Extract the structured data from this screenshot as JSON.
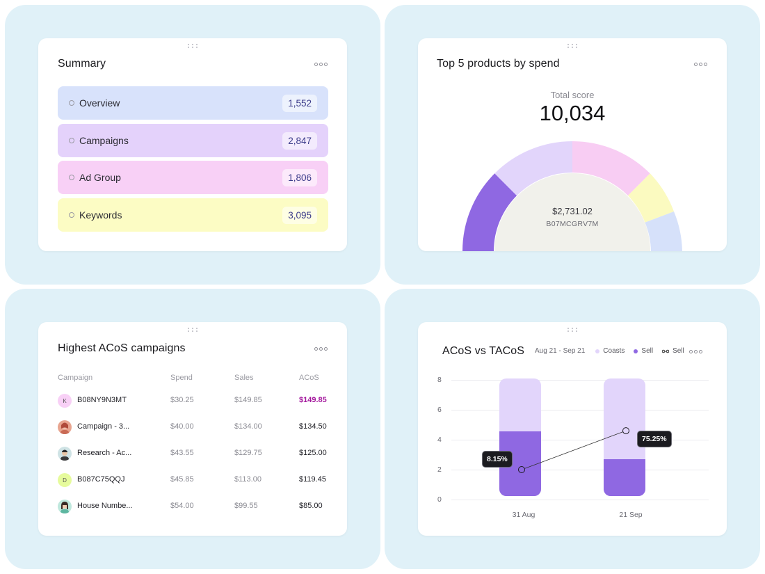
{
  "colors": {
    "tile_bg": "#e0f1f8",
    "overview": "#d8e2fb",
    "campaigns": "#e4d2fb",
    "ad_group": "#f8d0f6",
    "keywords": "#fcfcc4",
    "purple": "#8f68e2",
    "lavender": "#e2d5fb",
    "pink": "#f8cdf3",
    "yellow": "#fbfac0",
    "blue": "#d6e1fa",
    "highlight": "#a3169c"
  },
  "summary": {
    "title": "Summary",
    "items": [
      {
        "label": "Overview",
        "count": "1,552"
      },
      {
        "label": "Campaigns",
        "count": "2,847"
      },
      {
        "label": "Ad Group",
        "count": "1,806"
      },
      {
        "label": "Keywords",
        "count": "3,095"
      }
    ]
  },
  "top_products": {
    "title": "Top 5 products by spend",
    "score_label": "Total score",
    "score_value": "10,034",
    "center_value": "$2,731.02",
    "center_sku": "B07MCGRV7M"
  },
  "acos_campaigns": {
    "title": "Highest ACoS campaigns",
    "headers": {
      "campaign": "Campaign",
      "spend": "Spend",
      "sales": "Sales",
      "acos": "ACoS"
    },
    "rows": [
      {
        "avatar": "K",
        "name": "B08NY9N3MT",
        "spend": "$30.25",
        "sales": "$149.85",
        "acos": "$149.85"
      },
      {
        "avatar": "",
        "name": "Campaign - 3...",
        "spend": "$40.00",
        "sales": "$134.00",
        "acos": "$134.50"
      },
      {
        "avatar": "",
        "name": "Research - Ac...",
        "spend": "$43.55",
        "sales": "$129.75",
        "acos": "$125.00"
      },
      {
        "avatar": "D",
        "name": "B087C75QQJ",
        "spend": "$45.85",
        "sales": "$113.00",
        "acos": "$119.45"
      },
      {
        "avatar": "",
        "name": "House Numbe...",
        "spend": "$54.00",
        "sales": "$99.55",
        "acos": "$85.00"
      }
    ]
  },
  "chart_data": {
    "type": "bar",
    "title": "ACoS vs TACoS",
    "date_range": "Aug 21 - Sep 21",
    "legend": [
      "Coasts",
      "Sell",
      "Sell"
    ],
    "categories": [
      "31 Aug",
      "21 Sep"
    ],
    "yticks": [
      "8",
      "6",
      "4",
      "2",
      "0"
    ],
    "ylim": [
      0,
      8
    ],
    "series": [
      {
        "name": "Coasts",
        "values": [
          8,
          8
        ]
      },
      {
        "name": "Sell",
        "values": [
          4.4,
          2.5
        ]
      },
      {
        "name": "Sell",
        "values": [
          2,
          4.6
        ]
      }
    ],
    "annotations": [
      "8.15%",
      "75.25%"
    ]
  }
}
